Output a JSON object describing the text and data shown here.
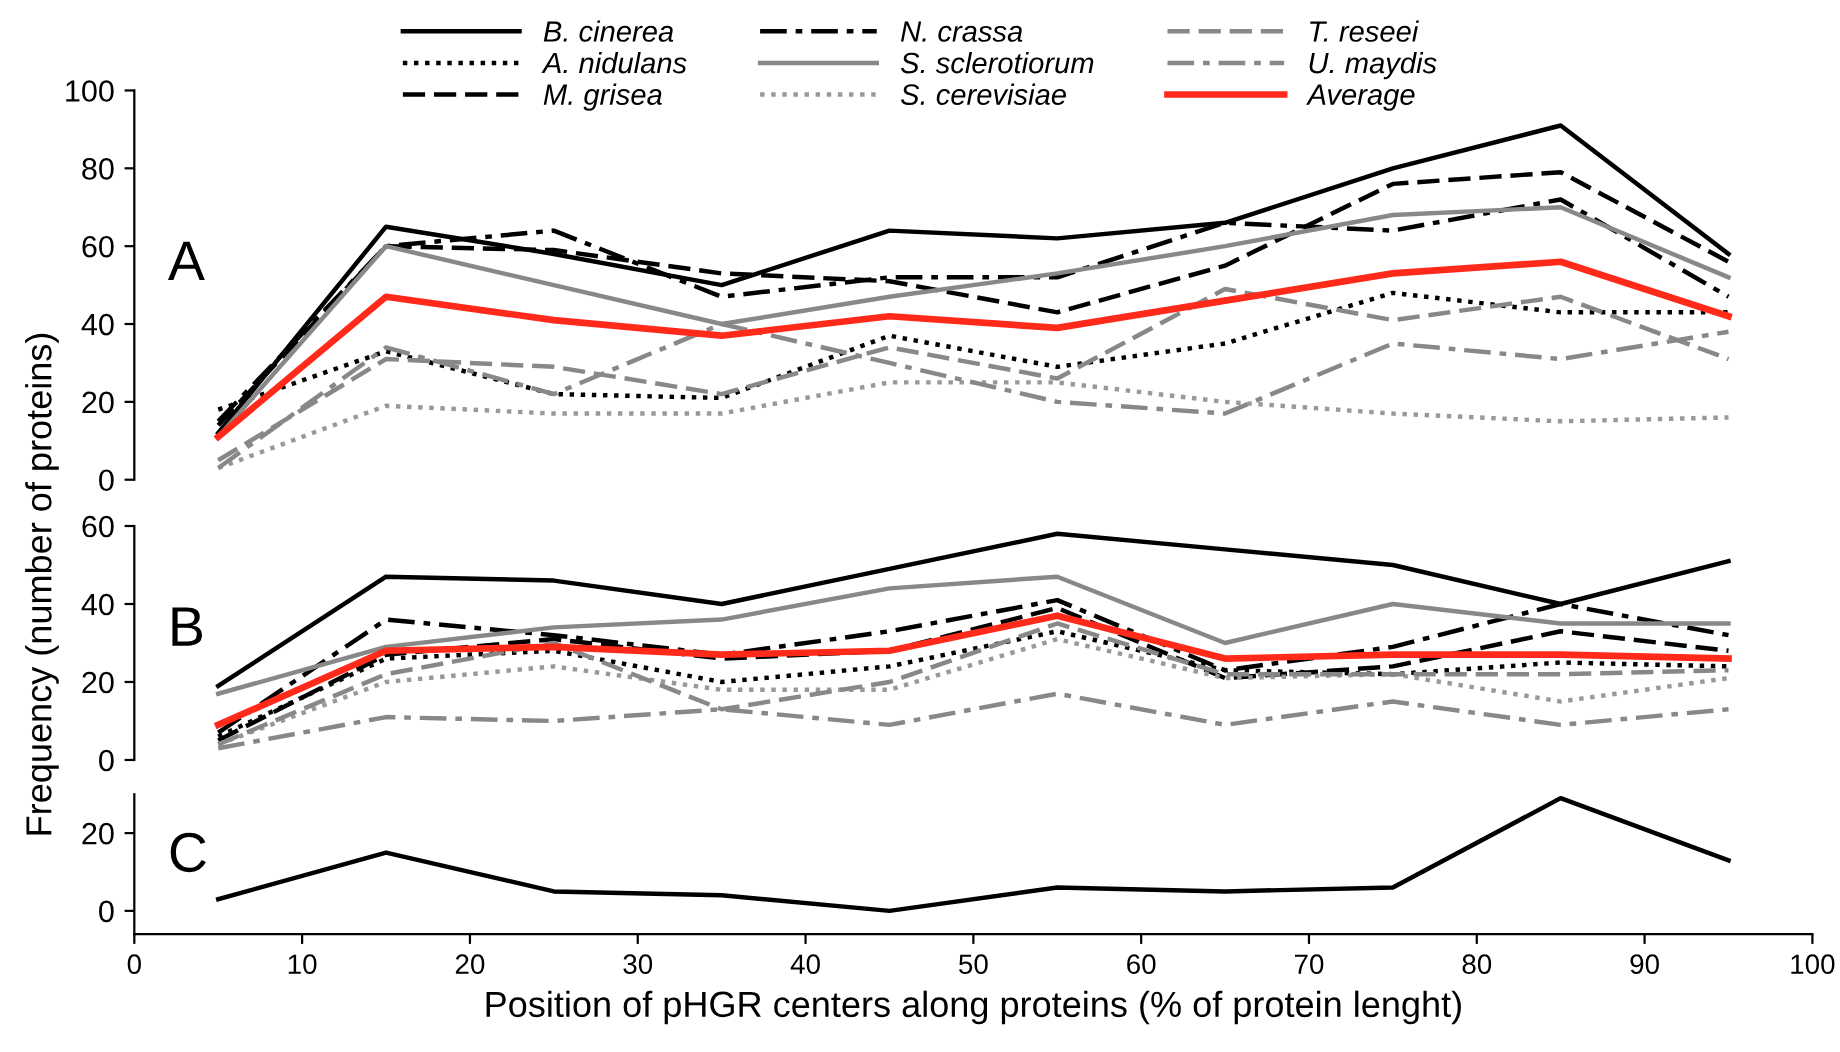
{
  "chart_data": [
    {
      "type": "line",
      "xlim": [
        0,
        100
      ],
      "ylim": [
        0,
        100
      ],
      "yticks": [
        0,
        20,
        40,
        60,
        80,
        100
      ],
      "tick_labels": "y",
      "grid": false,
      "legend": "top",
      "annotations": [
        "A"
      ],
      "x": [
        5,
        15,
        25,
        35,
        45,
        55,
        65,
        75,
        85,
        95
      ],
      "series": [
        {
          "name": "B. cinerea",
          "color": "#000000",
          "line_style": "solid",
          "values": [
            12,
            65,
            58,
            50,
            64,
            62,
            66,
            80,
            91,
            58
          ]
        },
        {
          "name": "A. nidulans",
          "color": "#000000",
          "line_style": "dotted",
          "values": [
            18,
            33,
            22,
            21,
            37,
            29,
            35,
            48,
            43,
            43
          ]
        },
        {
          "name": "M. grisea",
          "color": "#000000",
          "line_style": "dashed",
          "values": [
            14,
            60,
            59,
            53,
            51,
            43,
            55,
            76,
            79,
            56
          ]
        },
        {
          "name": "N. crassa",
          "color": "#000000",
          "line_style": "dashdot",
          "values": [
            15,
            60,
            64,
            47,
            52,
            52,
            66,
            64,
            72,
            47
          ]
        },
        {
          "name": "S. sclerotiorum",
          "color": "#888888",
          "line_style": "solid",
          "values": [
            11,
            60,
            50,
            40,
            47,
            53,
            60,
            68,
            70,
            52
          ]
        },
        {
          "name": "S. cerevisiae",
          "color": "#999999",
          "line_style": "dotted",
          "values": [
            3,
            19,
            17,
            17,
            25,
            25,
            20,
            17,
            15,
            16
          ]
        },
        {
          "name": "T. reseei",
          "color": "#888888",
          "line_style": "dashed",
          "values": [
            5,
            31,
            29,
            22,
            34,
            26,
            49,
            41,
            47,
            31
          ]
        },
        {
          "name": "U. maydis",
          "color": "#888888",
          "line_style": "dashdot",
          "values": [
            3,
            34,
            22,
            40,
            30,
            20,
            17,
            35,
            31,
            38
          ]
        },
        {
          "name": "Average",
          "color": "#ff2a1a",
          "line_style": "solid",
          "values": [
            11,
            47,
            41,
            37,
            42,
            39,
            46,
            53,
            56,
            42
          ]
        }
      ]
    },
    {
      "type": "line",
      "xlim": [
        0,
        100
      ],
      "ylim": [
        0,
        60
      ],
      "yticks": [
        0,
        20,
        40,
        60
      ],
      "tick_labels": "y",
      "grid": false,
      "annotations": [
        "B"
      ],
      "ylabel": "Frequency (number of proteins)",
      "x": [
        5,
        15,
        25,
        35,
        45,
        55,
        65,
        75,
        85,
        95
      ],
      "series": [
        {
          "color": "#000000",
          "line_style": "solid",
          "values": [
            19,
            47,
            46,
            40,
            49,
            58,
            54,
            50,
            40,
            51
          ]
        },
        {
          "color": "#000000",
          "line_style": "dotted",
          "values": [
            6,
            26,
            28,
            20,
            24,
            33,
            23,
            22,
            25,
            24
          ]
        },
        {
          "color": "#000000",
          "line_style": "dashed",
          "values": [
            5,
            27,
            31,
            26,
            28,
            39,
            21,
            24,
            33,
            28
          ]
        },
        {
          "color": "#000000",
          "line_style": "dashdot",
          "values": [
            7,
            36,
            32,
            27,
            33,
            41,
            23,
            29,
            40,
            32
          ]
        },
        {
          "color": "#888888",
          "line_style": "solid",
          "values": [
            17,
            29,
            34,
            36,
            44,
            47,
            30,
            40,
            35,
            35
          ]
        },
        {
          "color": "#999999",
          "line_style": "dotted",
          "values": [
            4,
            20,
            24,
            18,
            18,
            31,
            21,
            22,
            15,
            21
          ]
        },
        {
          "color": "#888888",
          "line_style": "dashed",
          "values": [
            4,
            22,
            30,
            13,
            20,
            35,
            22,
            22,
            22,
            23
          ]
        },
        {
          "color": "#888888",
          "line_style": "dashdot",
          "values": [
            3,
            11,
            10,
            13,
            9,
            17,
            9,
            15,
            9,
            13
          ]
        },
        {
          "color": "#ff2a1a",
          "line_style": "solid",
          "values": [
            9,
            28,
            29,
            27,
            28,
            37,
            26,
            27,
            27,
            26
          ]
        }
      ]
    },
    {
      "type": "line",
      "xlim": [
        0,
        100
      ],
      "xticks": [
        0,
        10,
        20,
        30,
        40,
        50,
        60,
        70,
        80,
        90,
        100
      ],
      "ylim": [
        -6,
        30
      ],
      "yticks": [
        0,
        20
      ],
      "grid": false,
      "annotations": [
        "C"
      ],
      "xlabel": "Position of pHGR centers along proteins (% of protein lenght)",
      "x": [
        5,
        15,
        25,
        35,
        45,
        55,
        65,
        75,
        85,
        95
      ],
      "series": [
        {
          "color": "#000000",
          "line_style": "solid",
          "values": [
            3,
            15,
            5,
            4,
            0,
            6,
            5,
            6,
            29,
            13
          ]
        }
      ]
    }
  ]
}
